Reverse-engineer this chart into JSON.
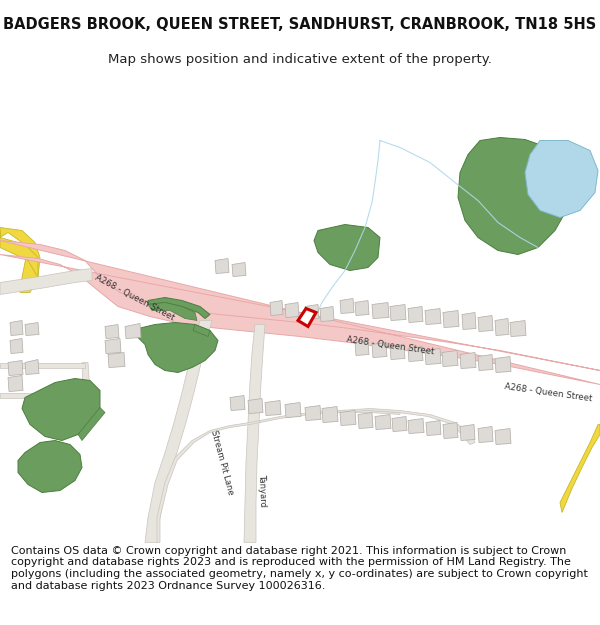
{
  "title": "BADGERS BROOK, QUEEN STREET, SANDHURST, CRANBROOK, TN18 5HS",
  "subtitle": "Map shows position and indicative extent of the property.",
  "footer": "Contains OS data © Crown copyright and database right 2021. This information is subject to Crown copyright and database rights 2023 and is reproduced with the permission of HM Land Registry. The polygons (including the associated geometry, namely x, y co-ordinates) are subject to Crown copyright and database rights 2023 Ordnance Survey 100026316.",
  "map_bg": "#f5f2ee",
  "road_color": "#f5c8c8",
  "road_edge": "#e8a8a8",
  "green_color": "#6b9e5e",
  "green_edge": "#4a7e3e",
  "water_color": "#b0d8e8",
  "water_edge": "#80b8cc",
  "stream_color": "#b0d8e8",
  "building_color": "#dedad6",
  "building_edge": "#b0aca8",
  "road_minor_color": "#e8e4de",
  "road_minor_edge": "#c8c4be",
  "yellow_color": "#f0d840",
  "yellow_edge": "#c8b828",
  "highlight_color": "#cc0000",
  "text_color": "#333333",
  "title_fontsize": 10.5,
  "subtitle_fontsize": 9.5,
  "footer_fontsize": 8.0
}
